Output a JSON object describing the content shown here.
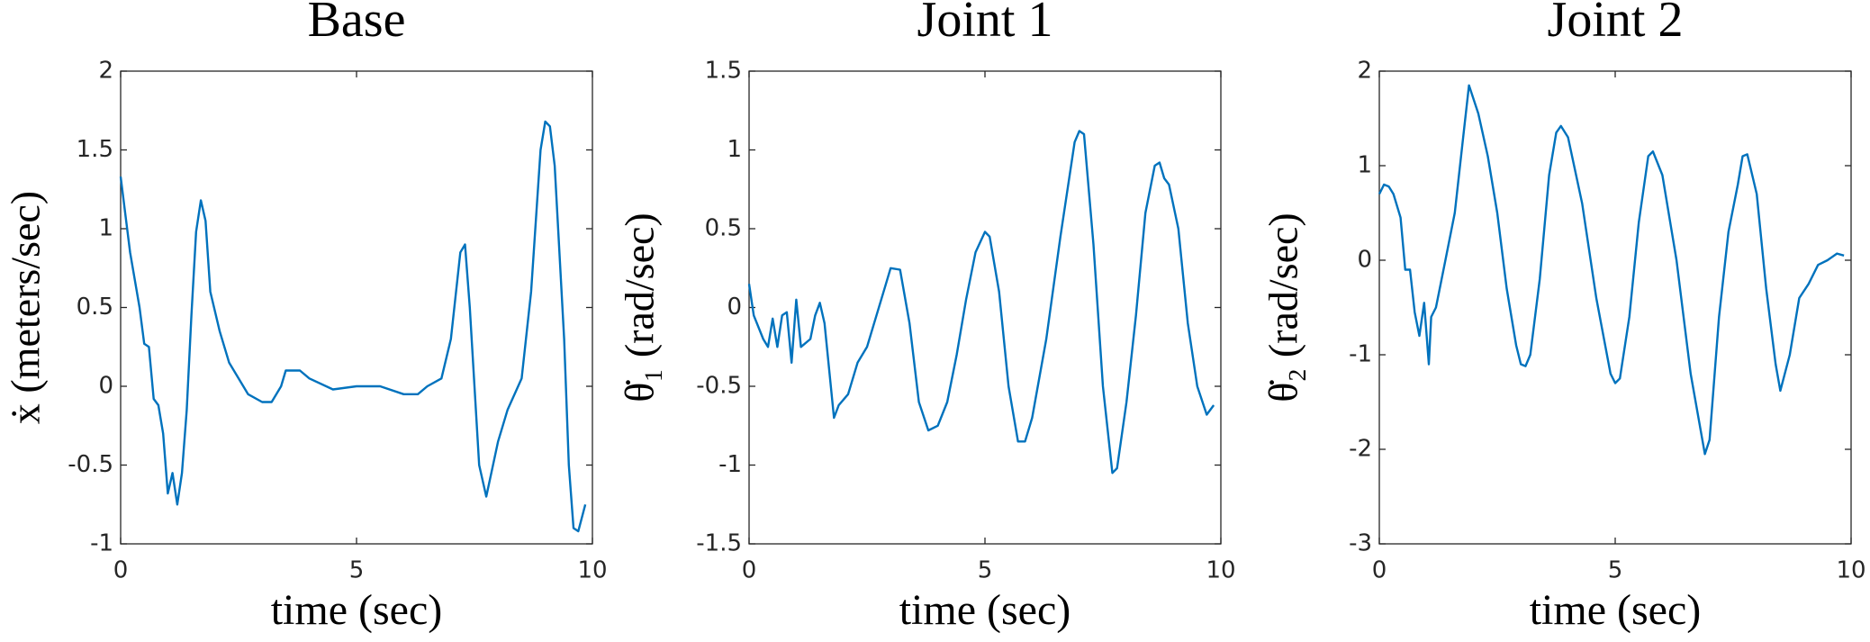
{
  "chart_data": [
    {
      "type": "line",
      "title": "Base",
      "xlabel": "time (sec)",
      "ylabel": "ẋ (meters/sec)",
      "color": "#0072bd",
      "xlim": [
        0,
        10
      ],
      "xticks": [
        0,
        5,
        10
      ],
      "ylim": [
        -1,
        2
      ],
      "yticks": [
        -1,
        -0.5,
        0,
        0.5,
        1,
        1.5,
        2
      ],
      "x": [
        0,
        0.2,
        0.4,
        0.5,
        0.6,
        0.7,
        0.8,
        0.9,
        1.0,
        1.1,
        1.2,
        1.3,
        1.4,
        1.5,
        1.6,
        1.7,
        1.8,
        1.9,
        2.1,
        2.3,
        2.5,
        2.7,
        3.0,
        3.2,
        3.4,
        3.5,
        3.8,
        4.0,
        4.5,
        5.0,
        5.5,
        6.0,
        6.3,
        6.5,
        6.8,
        7.0,
        7.2,
        7.3,
        7.4,
        7.6,
        7.75,
        8.0,
        8.2,
        8.5,
        8.7,
        8.9,
        9.0,
        9.1,
        9.2,
        9.4,
        9.5,
        9.6,
        9.7,
        9.85
      ],
      "values": [
        1.33,
        0.85,
        0.5,
        0.27,
        0.25,
        -0.08,
        -0.12,
        -0.3,
        -0.68,
        -0.55,
        -0.75,
        -0.55,
        -0.15,
        0.45,
        0.98,
        1.18,
        1.05,
        0.6,
        0.35,
        0.15,
        0.05,
        -0.05,
        -0.1,
        -0.1,
        0.0,
        0.1,
        0.1,
        0.05,
        -0.02,
        0.0,
        0.0,
        -0.05,
        -0.05,
        0.0,
        0.05,
        0.3,
        0.85,
        0.9,
        0.5,
        -0.5,
        -0.7,
        -0.35,
        -0.15,
        0.05,
        0.6,
        1.5,
        1.68,
        1.65,
        1.4,
        0.3,
        -0.5,
        -0.9,
        -0.92,
        -0.75
      ]
    },
    {
      "type": "line",
      "title": "Joint 1",
      "xlabel": "time (sec)",
      "ylabel": "θ̇₁ (rad/sec)",
      "color": "#0072bd",
      "xlim": [
        0,
        10
      ],
      "xticks": [
        0,
        5,
        10
      ],
      "ylim": [
        -1.5,
        1.5
      ],
      "yticks": [
        -1.5,
        -1,
        -0.5,
        0,
        0.5,
        1,
        1.5
      ],
      "x": [
        0,
        0.1,
        0.3,
        0.4,
        0.5,
        0.6,
        0.7,
        0.8,
        0.9,
        1.0,
        1.1,
        1.3,
        1.4,
        1.5,
        1.6,
        1.8,
        1.9,
        2.1,
        2.3,
        2.5,
        2.7,
        2.9,
        3.0,
        3.2,
        3.4,
        3.6,
        3.8,
        4.0,
        4.2,
        4.4,
        4.6,
        4.8,
        5.0,
        5.1,
        5.3,
        5.5,
        5.7,
        5.85,
        6.0,
        6.3,
        6.6,
        6.9,
        7.0,
        7.1,
        7.3,
        7.5,
        7.7,
        7.8,
        8.0,
        8.2,
        8.4,
        8.6,
        8.7,
        8.8,
        8.9,
        9.1,
        9.3,
        9.5,
        9.7,
        9.85
      ],
      "values": [
        0.15,
        -0.05,
        -0.2,
        -0.25,
        -0.07,
        -0.25,
        -0.05,
        -0.03,
        -0.35,
        0.05,
        -0.25,
        -0.2,
        -0.05,
        0.03,
        -0.1,
        -0.7,
        -0.62,
        -0.55,
        -0.35,
        -0.25,
        -0.05,
        0.15,
        0.25,
        0.24,
        -0.1,
        -0.6,
        -0.78,
        -0.75,
        -0.6,
        -0.3,
        0.05,
        0.35,
        0.48,
        0.45,
        0.1,
        -0.5,
        -0.85,
        -0.85,
        -0.7,
        -0.2,
        0.45,
        1.05,
        1.12,
        1.1,
        0.4,
        -0.5,
        -1.05,
        -1.02,
        -0.6,
        -0.05,
        0.6,
        0.9,
        0.92,
        0.82,
        0.78,
        0.5,
        -0.1,
        -0.5,
        -0.68,
        -0.62
      ]
    },
    {
      "type": "line",
      "title": "Joint 2",
      "xlabel": "time (sec)",
      "ylabel": "θ̇₂ (rad/sec)",
      "color": "#0072bd",
      "xlim": [
        0,
        10
      ],
      "xticks": [
        0,
        5,
        10
      ],
      "ylim": [
        -3,
        2
      ],
      "yticks": [
        -3,
        -2,
        -1,
        0,
        1,
        2
      ],
      "x": [
        0,
        0.1,
        0.2,
        0.3,
        0.45,
        0.55,
        0.65,
        0.75,
        0.85,
        0.95,
        1.05,
        1.1,
        1.2,
        1.4,
        1.6,
        1.8,
        1.9,
        2.1,
        2.3,
        2.5,
        2.7,
        2.9,
        3.0,
        3.1,
        3.2,
        3.4,
        3.6,
        3.75,
        3.85,
        4.0,
        4.3,
        4.6,
        4.9,
        5.0,
        5.1,
        5.3,
        5.5,
        5.7,
        5.8,
        6.0,
        6.3,
        6.6,
        6.9,
        7.0,
        7.2,
        7.4,
        7.6,
        7.7,
        7.8,
        8.0,
        8.2,
        8.4,
        8.5,
        8.7,
        8.9,
        9.1,
        9.3,
        9.5,
        9.7,
        9.85
      ],
      "values": [
        0.7,
        0.8,
        0.78,
        0.7,
        0.45,
        -0.1,
        -0.1,
        -0.55,
        -0.8,
        -0.45,
        -1.1,
        -0.6,
        -0.5,
        0.0,
        0.5,
        1.4,
        1.85,
        1.55,
        1.1,
        0.5,
        -0.3,
        -0.9,
        -1.1,
        -1.12,
        -1.0,
        -0.2,
        0.9,
        1.35,
        1.42,
        1.3,
        0.6,
        -0.4,
        -1.2,
        -1.3,
        -1.25,
        -0.6,
        0.4,
        1.1,
        1.15,
        0.9,
        0.0,
        -1.2,
        -2.05,
        -1.9,
        -0.6,
        0.3,
        0.8,
        1.1,
        1.12,
        0.7,
        -0.3,
        -1.1,
        -1.38,
        -1.0,
        -0.4,
        -0.25,
        -0.05,
        0.0,
        0.07,
        0.05
      ]
    }
  ]
}
